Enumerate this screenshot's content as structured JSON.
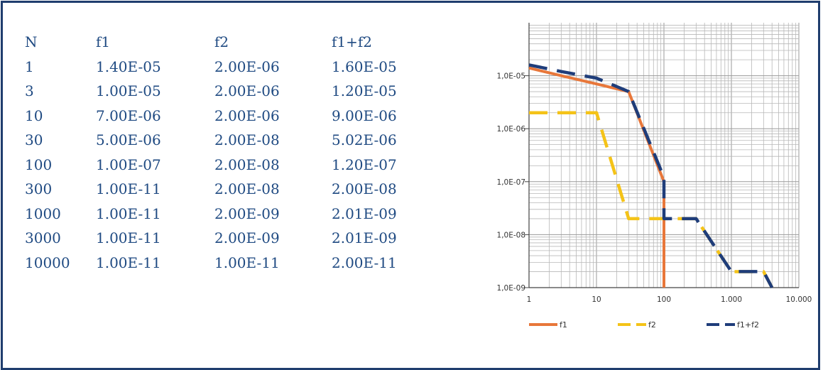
{
  "table": {
    "headers": [
      "N",
      "f1",
      "f2",
      "f1+f2"
    ],
    "rows": [
      [
        "1",
        "1.40E-05",
        "2.00E-06",
        "1.60E-05"
      ],
      [
        "3",
        "1.00E-05",
        "2.00E-06",
        "1.20E-05"
      ],
      [
        "10",
        "7.00E-06",
        "2.00E-06",
        "9.00E-06"
      ],
      [
        "30",
        "5.00E-06",
        "2.00E-08",
        "5.02E-06"
      ],
      [
        "100",
        "1.00E-07",
        "2.00E-08",
        "1.20E-07"
      ],
      [
        "300",
        "1.00E-11",
        "2.00E-08",
        "2.00E-08"
      ],
      [
        "1000",
        "1.00E-11",
        "2.00E-09",
        "2.01E-09"
      ],
      [
        "3000",
        "1.00E-11",
        "2.00E-09",
        "2.01E-09"
      ],
      [
        "10000",
        "1.00E-11",
        "1.00E-11",
        "2.00E-11"
      ]
    ]
  },
  "chart_data": {
    "type": "line",
    "xscale": "log",
    "yscale": "log",
    "xlim": [
      1,
      10000
    ],
    "ylim": [
      1e-09,
      0.0001
    ],
    "grid": true,
    "legend_position": "bottom",
    "x_ticks": [
      {
        "value": 1,
        "label": "1"
      },
      {
        "value": 10,
        "label": "10"
      },
      {
        "value": 100,
        "label": "100"
      },
      {
        "value": 1000,
        "label": "1.000"
      },
      {
        "value": 10000,
        "label": "10.000"
      }
    ],
    "y_ticks": [
      {
        "value": 1e-05,
        "label": "1,0E-05"
      },
      {
        "value": 1e-06,
        "label": "1,0E-06"
      },
      {
        "value": 1e-07,
        "label": "1,0E-07"
      },
      {
        "value": 1e-08,
        "label": "1,0E-08"
      },
      {
        "value": 1e-09,
        "label": "1,0E-09"
      }
    ],
    "series": [
      {
        "name": "f1",
        "color": "#e8773a",
        "dash": "solid",
        "points": [
          [
            1,
            1.4e-05
          ],
          [
            3,
            1e-05
          ],
          [
            10,
            7e-06
          ],
          [
            30,
            5e-06
          ],
          [
            100,
            1e-07
          ],
          [
            100,
            1e-09
          ]
        ]
      },
      {
        "name": "f2",
        "color": "#f4c318",
        "dash": "dashed",
        "points": [
          [
            1,
            2e-06
          ],
          [
            3,
            2e-06
          ],
          [
            10,
            2e-06
          ],
          [
            30,
            2e-08
          ],
          [
            100,
            2e-08
          ],
          [
            300,
            2e-08
          ],
          [
            1000,
            2e-09
          ],
          [
            3000,
            2e-09
          ],
          [
            4000,
            1e-09
          ]
        ]
      },
      {
        "name": "f1+f2",
        "color": "#1f3d7a",
        "dash": "dashed",
        "points": [
          [
            1,
            1.6e-05
          ],
          [
            3,
            1.2e-05
          ],
          [
            10,
            9e-06
          ],
          [
            30,
            5.02e-06
          ],
          [
            100,
            1.2e-07
          ],
          [
            100,
            2e-08
          ],
          [
            300,
            2e-08
          ],
          [
            1000,
            2.01e-09
          ],
          [
            3000,
            2.01e-09
          ],
          [
            4000,
            1e-09
          ]
        ]
      }
    ]
  }
}
